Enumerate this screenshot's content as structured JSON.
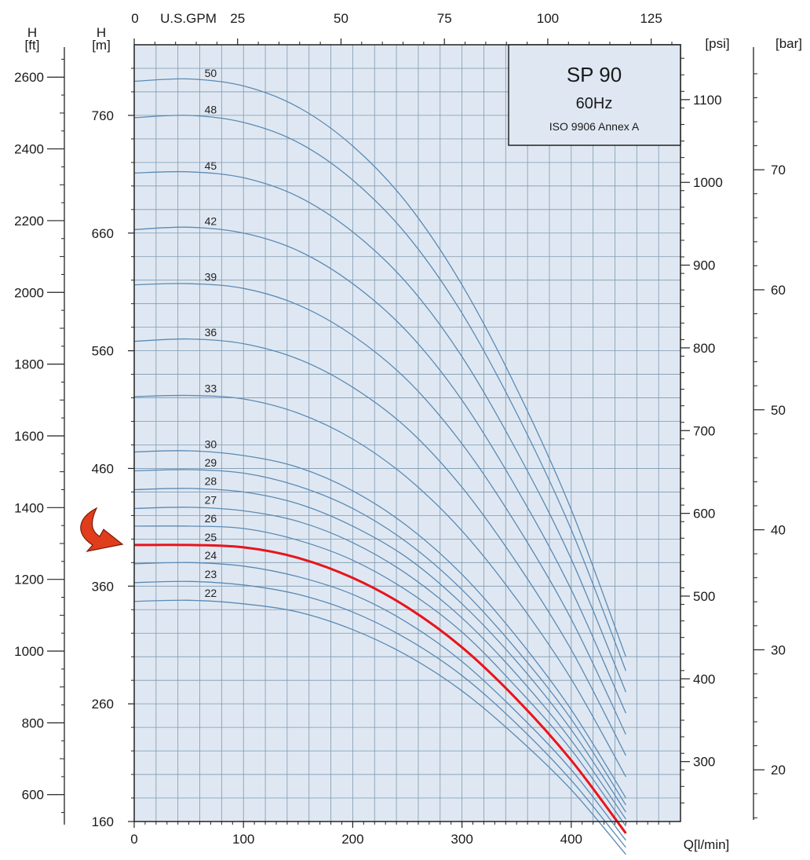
{
  "chart_data": {
    "type": "line",
    "title": "SP 90",
    "subtitle": "60Hz",
    "note": "ISO 9906 Annex A",
    "xlabel": "Q[l/min]",
    "x_top_label": "U.S.GPM",
    "ylabel_m": "H\n[m]",
    "ylabel_ft": "H\n[ft]",
    "ylabel_psi": "[psi]",
    "ylabel_bar": "[bar]",
    "xlim": [
      0,
      500
    ],
    "ylim": [
      160,
      820
    ],
    "grid": true,
    "x_ticks": [
      "0",
      "100",
      "200",
      "300",
      "400"
    ],
    "x_ticks_gpm": [
      "0",
      "25",
      "50",
      "75",
      "100",
      "125"
    ],
    "y_ticks_m": [
      "160",
      "260",
      "360",
      "460",
      "560",
      "660",
      "760"
    ],
    "y_ticks_ft": [
      "600",
      "800",
      "1000",
      "1200",
      "1400",
      "1600",
      "1800",
      "2000",
      "2200",
      "2400",
      "2600"
    ],
    "y_ticks_psi": [
      "300",
      "400",
      "500",
      "600",
      "700",
      "800",
      "900",
      "1000",
      "1100"
    ],
    "y_ticks_bar": [
      "20",
      "30",
      "40",
      "50",
      "60",
      "70"
    ],
    "highlighted_stage": "25",
    "highlight_color": "#e8141c",
    "curve_color": "#5b8ab5",
    "plot_background": "#dfe8f2",
    "grid_color": "#7e98b0",
    "arrow_color": "#e03d1c",
    "series": [
      {
        "name": "50",
        "x": [
          0,
          50,
          100,
          150,
          200,
          250,
          300,
          350,
          400,
          450
        ],
        "y": [
          789,
          791,
          785,
          767,
          734,
          685,
          616,
          528,
          425,
          300
        ]
      },
      {
        "name": "48",
        "x": [
          0,
          50,
          100,
          150,
          200,
          250,
          300,
          350,
          400,
          450
        ],
        "y": [
          758,
          760,
          754,
          737,
          705,
          658,
          592,
          507,
          408,
          288
        ]
      },
      {
        "name": "45",
        "x": [
          0,
          50,
          100,
          150,
          200,
          250,
          300,
          350,
          400,
          450
        ],
        "y": [
          711,
          712,
          707,
          691,
          661,
          617,
          555,
          475,
          383,
          270
        ]
      },
      {
        "name": "42",
        "x": [
          0,
          50,
          100,
          150,
          200,
          250,
          300,
          350,
          400,
          450
        ],
        "y": [
          663,
          665,
          660,
          645,
          617,
          576,
          518,
          443,
          357,
          252
        ]
      },
      {
        "name": "39",
        "x": [
          0,
          50,
          100,
          150,
          200,
          250,
          300,
          350,
          400,
          450
        ],
        "y": [
          616,
          617,
          613,
          599,
          573,
          535,
          481,
          412,
          332,
          234
        ]
      },
      {
        "name": "36",
        "x": [
          0,
          50,
          100,
          150,
          200,
          250,
          300,
          350,
          400,
          450
        ],
        "y": [
          568,
          570,
          566,
          553,
          529,
          494,
          444,
          380,
          306,
          216
        ]
      },
      {
        "name": "33",
        "x": [
          0,
          50,
          100,
          150,
          200,
          250,
          300,
          350,
          400,
          450
        ],
        "y": [
          521,
          522,
          519,
          507,
          485,
          452,
          407,
          349,
          281,
          198
        ]
      },
      {
        "name": "30",
        "x": [
          0,
          50,
          100,
          150,
          200,
          250,
          300,
          350,
          400,
          450
        ],
        "y": [
          474,
          475,
          471,
          461,
          441,
          411,
          370,
          317,
          255,
          180
        ]
      },
      {
        "name": "29",
        "x": [
          0,
          50,
          100,
          150,
          200,
          250,
          300,
          350,
          400,
          450
        ],
        "y": [
          458,
          459,
          456,
          445,
          426,
          397,
          357,
          306,
          247,
          174
        ]
      },
      {
        "name": "28",
        "x": [
          0,
          50,
          100,
          150,
          200,
          250,
          300,
          350,
          400,
          450
        ],
        "y": [
          442,
          443,
          440,
          430,
          411,
          384,
          345,
          296,
          238,
          168
        ]
      },
      {
        "name": "27",
        "x": [
          0,
          50,
          100,
          150,
          200,
          250,
          300,
          350,
          400,
          450
        ],
        "y": [
          426,
          427,
          424,
          415,
          397,
          370,
          333,
          285,
          229,
          162
        ]
      },
      {
        "name": "26",
        "x": [
          0,
          50,
          100,
          150,
          200,
          250,
          300,
          350,
          400,
          450
        ],
        "y": [
          411,
          411,
          409,
          399,
          382,
          356,
          321,
          274,
          221,
          156
        ]
      },
      {
        "name": "25",
        "x": [
          0,
          50,
          100,
          150,
          200,
          250,
          300,
          350,
          400,
          450
        ],
        "y": [
          395,
          395,
          393,
          384,
          367,
          342,
          308,
          264,
          212,
          150
        ]
      },
      {
        "name": "24",
        "x": [
          0,
          50,
          100,
          150,
          200,
          250,
          300,
          350,
          400,
          450
        ],
        "y": [
          379,
          380,
          377,
          368,
          353,
          329,
          296,
          253,
          204,
          144
        ]
      },
      {
        "name": "23",
        "x": [
          0,
          50,
          100,
          150,
          200,
          250,
          300,
          350,
          400,
          450
        ],
        "y": [
          363,
          364,
          361,
          353,
          338,
          315,
          284,
          243,
          195,
          138
        ]
      },
      {
        "name": "22",
        "x": [
          0,
          50,
          100,
          150,
          200,
          250,
          300,
          350,
          400,
          450
        ],
        "y": [
          347,
          348,
          345,
          338,
          323,
          301,
          271,
          232,
          187,
          132
        ]
      }
    ]
  }
}
